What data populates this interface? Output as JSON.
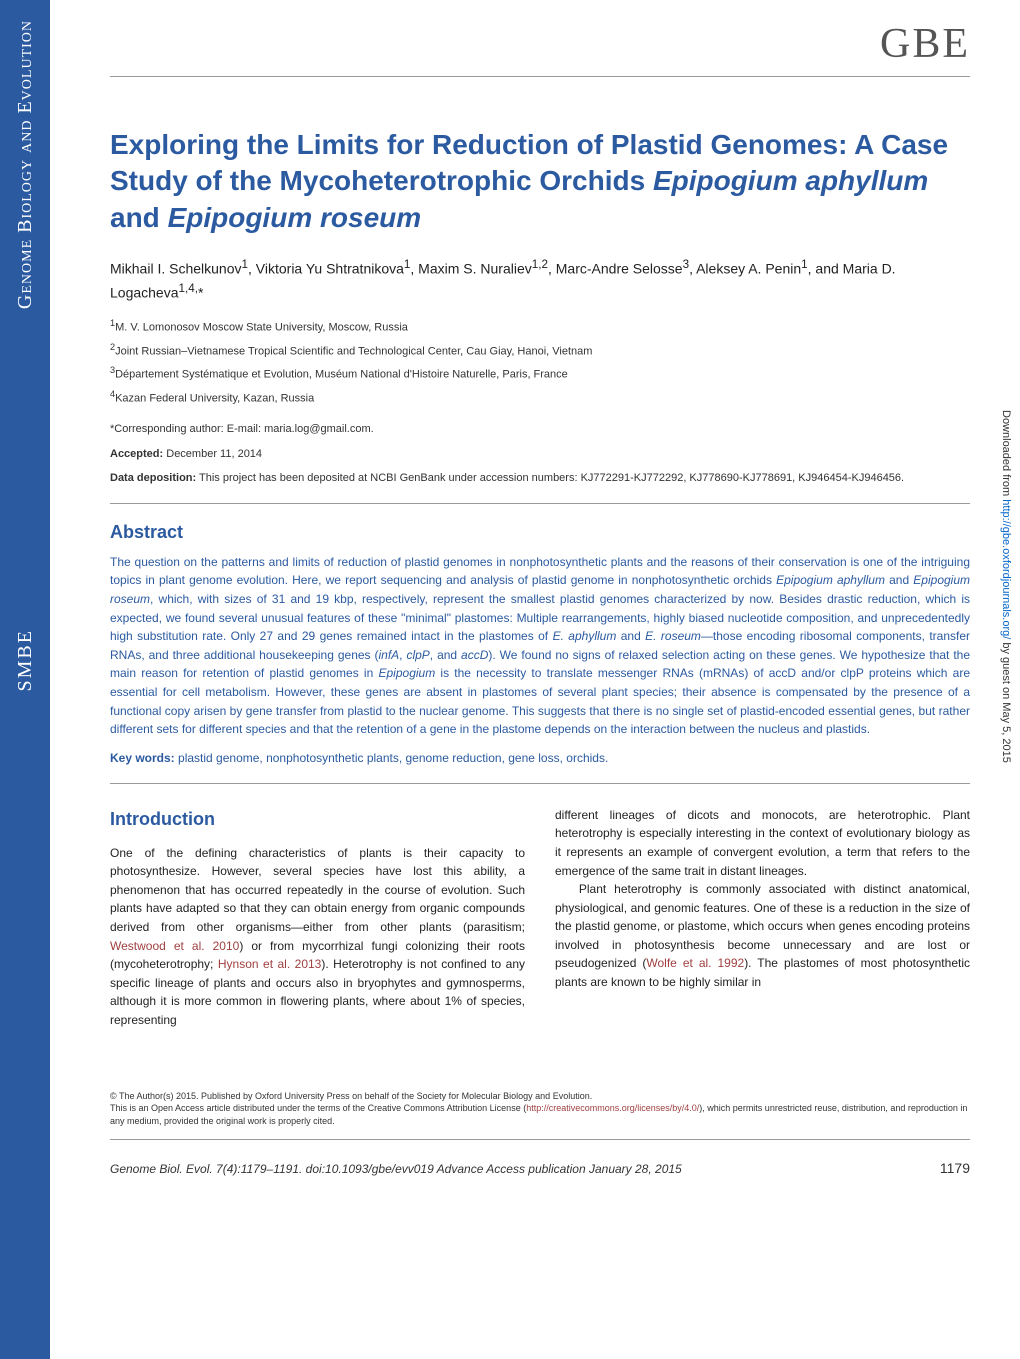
{
  "journal_logo": "GBE",
  "sidebar": {
    "top_text": "Genome Biology and Evolution",
    "bottom_text": "SMBE"
  },
  "download_notice": {
    "prefix": "Downloaded from ",
    "url": "http://gbe.oxfordjournals.org/",
    "suffix": " by guest on May 5, 2015"
  },
  "title_part1": "Exploring the Limits for Reduction of Plastid Genomes: A Case Study of the Mycoheterotrophic Orchids ",
  "title_italic1": "Epipogium aphyllum",
  "title_part2": " and ",
  "title_italic2": "Epipogium roseum",
  "authors_html": "Mikhail I. Schelkunov<sup>1</sup>, Viktoria Yu Shtratnikova<sup>1</sup>, Maxim S. Nuraliev<sup>1,2</sup>, Marc-Andre Selosse<sup>3</sup>, Aleksey A. Penin<sup>1</sup>, and Maria D. Logacheva<sup>1,4,</sup>*",
  "affiliations": [
    "<sup>1</sup>M. V. Lomonosov Moscow State University, Moscow, Russia",
    "<sup>2</sup>Joint Russian–Vietnamese Tropical Scientific and Technological Center, Cau Giay, Hanoi, Vietnam",
    "<sup>3</sup>Département Systématique et Evolution, Muséum National d'Histoire Naturelle, Paris, France",
    "<sup>4</sup>Kazan Federal University, Kazan, Russia"
  ],
  "corresponding": "*Corresponding author: E-mail: maria.log@gmail.com.",
  "accepted_label": "Accepted:",
  "accepted_date": " December 11, 2014",
  "data_deposition_label": "Data deposition:",
  "data_deposition_text": " This project has been deposited at NCBI GenBank under accession numbers: KJ772291-KJ772292, KJ778690-KJ778691, KJ946454-KJ946456.",
  "abstract_heading": "Abstract",
  "abstract_text": "The question on the patterns and limits of reduction of plastid genomes in nonphotosynthetic plants and the reasons of their conservation is one of the intriguing topics in plant genome evolution. Here, we report sequencing and analysis of plastid genome in nonphotosynthetic orchids <i>Epipogium aphyllum</i> and <i>Epipogium roseum</i>, which, with sizes of 31 and 19 kbp, respectively, represent the smallest plastid genomes characterized by now. Besides drastic reduction, which is expected, we found several unusual features of these \"minimal\" plastomes: Multiple rearrangements, highly biased nucleotide composition, and unprecedentedly high substitution rate. Only 27 and 29 genes remained intact in the plastomes of <i>E. aphyllum</i> and <i>E. roseum</i>—those encoding ribosomal components, transfer RNAs, and three additional housekeeping genes (<i>infA</i>, <i>clpP</i>, and <i>accD</i>). We found no signs of relaxed selection acting on these genes. We hypothesize that the main reason for retention of plastid genomes in <i>Epipogium</i> is the necessity to translate messenger RNAs (mRNAs) of accD and/or clpP proteins which are essential for cell metabolism. However, these genes are absent in plastomes of several plant species; their absence is compensated by the presence of a functional copy arisen by gene transfer from plastid to the nuclear genome. This suggests that there is no single set of plastid-encoded essential genes, but rather different sets for different species and that the retention of a gene in the plastome depends on the interaction between the nucleus and plastids.",
  "keywords_label": "Key words:",
  "keywords_text": " plastid genome, nonphotosynthetic plants, genome reduction, gene loss, orchids.",
  "intro_heading": "Introduction",
  "intro_col1": "One of the defining characteristics of plants is their capacity to photosynthesize. However, several species have lost this ability, a phenomenon that has occurred repeatedly in the course of evolution. Such plants have adapted so that they can obtain energy from organic compounds derived from other organisms—either from other plants (parasitism; <span class=\"link\">Westwood et al. 2010</span>) or from mycorrhizal fungi colonizing their roots (mycoheterotrophy; <span class=\"link\">Hynson et al. 2013</span>). Heterotrophy is not confined to any specific lineage of plants and occurs also in bryophytes and gymnosperms, although it is more common in flowering plants, where about 1% of species, representing",
  "intro_col2": "different lineages of dicots and monocots, are heterotrophic. Plant heterotrophy is especially interesting in the context of evolutionary biology as it represents an example of convergent evolution, a term that refers to the emergence of the same trait in distant lineages.<br>&nbsp;&nbsp;&nbsp;Plant heterotrophy is commonly associated with distinct anatomical, physiological, and genomic features. One of these is a reduction in the size of the plastid genome, or plastome, which occurs when genes encoding proteins involved in photosynthesis become unnecessary and are lost or pseudogenized (<span class=\"link\">Wolfe et al. 1992</span>). The plastomes of most photosynthetic plants are known to be highly similar in",
  "license_text": "© The Author(s) 2015. Published by Oxford University Press on behalf of the Society for Molecular Biology and Evolution.<br>This is an Open Access article distributed under the terms of the Creative Commons Attribution License (<a href=\"#\">http://creativecommons.org/licenses/by/4.0/</a>), which permits unrestricted reuse, distribution, and reproduction in any medium, provided the original work is properly cited.",
  "citation": "Genome Biol. Evol. 7(4):1179–1191.   doi:10.1093/gbe/evv019   Advance Access publication January 28, 2015",
  "page_number": "1179",
  "colors": {
    "brand_blue": "#2b5aa0",
    "link_red": "#a04040",
    "logo_gray": "#555555",
    "rule_gray": "#999999"
  }
}
